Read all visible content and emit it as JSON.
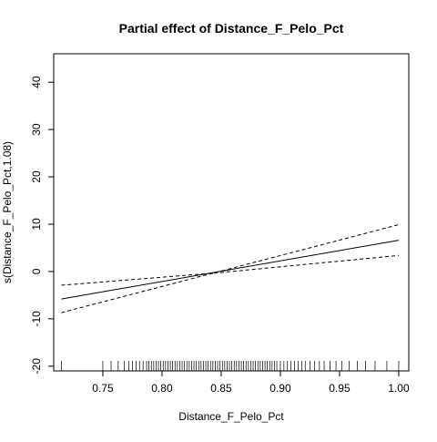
{
  "chart_data": {
    "type": "line",
    "title": "Partial effect of Distance_F_Pelo_Pct",
    "xlabel": "Distance_F_Pelo_Pct",
    "ylabel": "s(Distance_F_Pelo_Pct,1.08)",
    "xlim": [
      0.7085,
      1.0085
    ],
    "ylim": [
      -21,
      46
    ],
    "xticks": [
      0.75,
      0.8,
      0.85,
      0.9,
      0.95,
      1.0
    ],
    "xtick_labels": [
      "0.75",
      "0.80",
      "0.85",
      "0.90",
      "0.95",
      "1.00"
    ],
    "yticks": [
      -20,
      -10,
      0,
      10,
      20,
      30,
      40
    ],
    "ytick_labels": [
      "-20",
      "-10",
      "0",
      "10",
      "20",
      "30",
      "40"
    ],
    "grid": false,
    "series": [
      {
        "style": "solid",
        "x": [
          0.715,
          1.0
        ],
        "y": [
          -5.8,
          6.6
        ]
      },
      {
        "style": "dashed",
        "x": [
          0.715,
          0.85,
          1.0
        ],
        "y": [
          -8.7,
          0.1,
          9.9
        ]
      },
      {
        "style": "dashed",
        "x": [
          0.715,
          0.85,
          1.0
        ],
        "y": [
          -2.9,
          -0.2,
          3.4
        ]
      }
    ],
    "rug": [
      0.715,
      0.75,
      0.757,
      0.763,
      0.768,
      0.772,
      0.775,
      0.778,
      0.781,
      0.784,
      0.787,
      0.789,
      0.791,
      0.793,
      0.795,
      0.797,
      0.799,
      0.801,
      0.803,
      0.805,
      0.807,
      0.809,
      0.811,
      0.813,
      0.815,
      0.817,
      0.819,
      0.821,
      0.823,
      0.825,
      0.827,
      0.829,
      0.831,
      0.833,
      0.835,
      0.837,
      0.839,
      0.841,
      0.843,
      0.845,
      0.847,
      0.849,
      0.851,
      0.853,
      0.855,
      0.857,
      0.859,
      0.861,
      0.863,
      0.865,
      0.867,
      0.869,
      0.871,
      0.873,
      0.875,
      0.877,
      0.879,
      0.881,
      0.883,
      0.885,
      0.887,
      0.889,
      0.891,
      0.893,
      0.895,
      0.897,
      0.9,
      0.903,
      0.906,
      0.909,
      0.912,
      0.915,
      0.918,
      0.921,
      0.925,
      0.929,
      0.933,
      0.937,
      0.942,
      0.947,
      0.952,
      0.958,
      0.965,
      0.972,
      0.98,
      0.99,
      1.0
    ]
  }
}
